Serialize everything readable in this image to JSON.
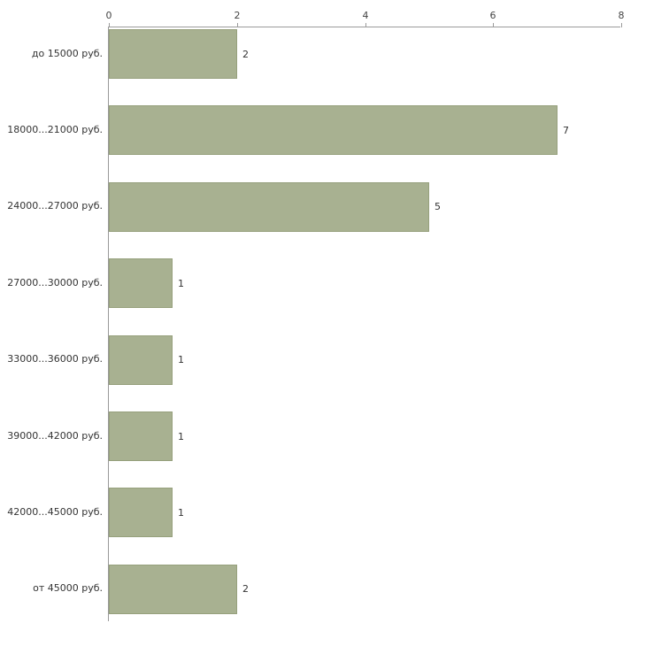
{
  "chart_data": {
    "type": "bar",
    "orientation": "horizontal",
    "title": "",
    "xlabel": "",
    "ylabel": "",
    "categories": [
      "до 15000 руб.",
      "18000...21000 руб.",
      "24000...27000 руб.",
      "27000...30000 руб.",
      "33000...36000 руб.",
      "39000...42000 руб.",
      "42000...45000 руб.",
      "от 45000 руб."
    ],
    "values": [
      2,
      7,
      5,
      1,
      1,
      1,
      1,
      2
    ],
    "xlim": [
      0,
      8
    ],
    "x_ticks": [
      0,
      2,
      4,
      6,
      8
    ],
    "grid": false,
    "legend": false,
    "value_labels": true,
    "colors": {
      "bar_fill": "#a8b191",
      "bar_border": "#96a07c",
      "axis": "#9a9a9a",
      "text": "#333333"
    }
  }
}
